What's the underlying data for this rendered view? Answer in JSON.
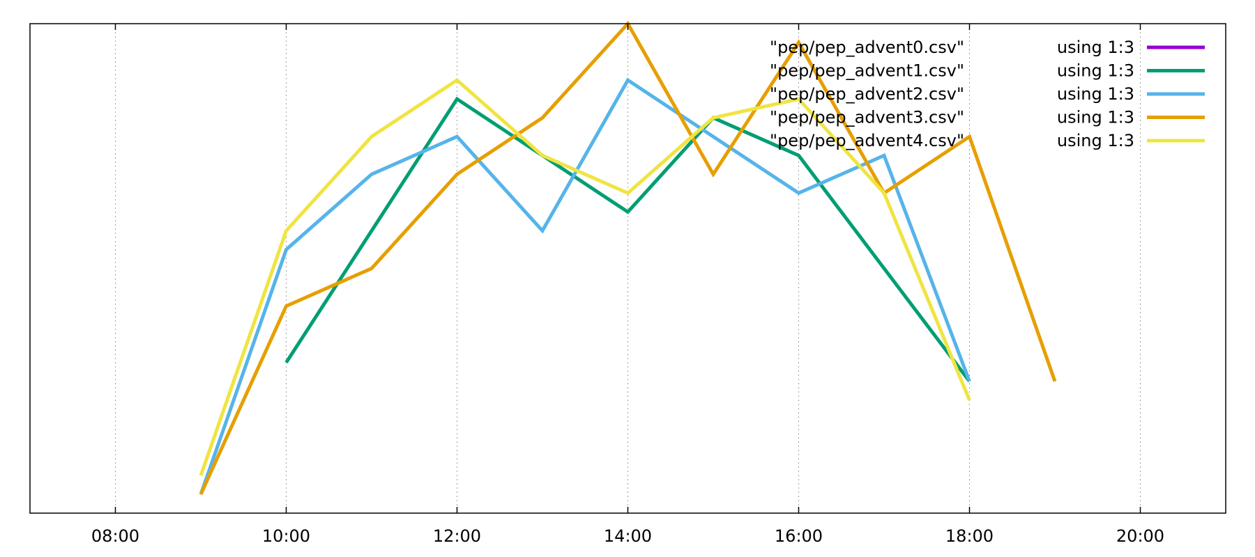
{
  "chart_data": {
    "type": "line",
    "title": "",
    "xlabel": "",
    "ylabel": "",
    "x_ticks": [
      "08:00",
      "10:00",
      "12:00",
      "14:00",
      "16:00",
      "18:00",
      "20:00"
    ],
    "xlim": [
      "07:00",
      "21:00"
    ],
    "ylim": [
      0,
      26
    ],
    "grid": "vertical dotted at x ticks",
    "legend_position": "top-right",
    "series": [
      {
        "name": "\"pep/pep_advent0.csv\"",
        "using": "using 1:3",
        "color": "#9400d3",
        "points": []
      },
      {
        "name": "\"pep/pep_advent1.csv\"",
        "using": "using 1:3",
        "color": "#009e73",
        "points": [
          [
            "10:00",
            8
          ],
          [
            "12:00",
            22
          ],
          [
            "14:00",
            16
          ],
          [
            "15:00",
            21
          ],
          [
            "16:00",
            19
          ],
          [
            "17:00",
            13
          ],
          [
            "18:00",
            7
          ]
        ]
      },
      {
        "name": "\"pep/pep_advent2.csv\"",
        "using": "using 1:3",
        "color": "#56b4e9",
        "points": [
          [
            "09:00",
            1
          ],
          [
            "10:00",
            14
          ],
          [
            "11:00",
            18
          ],
          [
            "12:00",
            20
          ],
          [
            "13:00",
            15
          ],
          [
            "14:00",
            23
          ],
          [
            "16:00",
            17
          ],
          [
            "17:00",
            19
          ],
          [
            "18:00",
            7
          ]
        ]
      },
      {
        "name": "\"pep/pep_advent3.csv\"",
        "using": "using 1:3",
        "color": "#e69f00",
        "points": [
          [
            "09:00",
            1
          ],
          [
            "10:00",
            11
          ],
          [
            "11:00",
            13
          ],
          [
            "12:00",
            18
          ],
          [
            "13:00",
            21
          ],
          [
            "14:00",
            26
          ],
          [
            "15:00",
            18
          ],
          [
            "16:00",
            25
          ],
          [
            "17:00",
            17
          ],
          [
            "18:00",
            20
          ],
          [
            "19:00",
            7
          ]
        ]
      },
      {
        "name": "\"pep/pep_advent4.csv\"",
        "using": "using 1:3",
        "color": "#f0e442",
        "points": [
          [
            "09:00",
            2
          ],
          [
            "10:00",
            15
          ],
          [
            "11:00",
            20
          ],
          [
            "12:00",
            23
          ],
          [
            "13:00",
            19
          ],
          [
            "14:00",
            17
          ],
          [
            "15:00",
            21
          ],
          [
            "16:00",
            22
          ],
          [
            "17:00",
            17
          ],
          [
            "18:00",
            6
          ]
        ]
      }
    ]
  }
}
